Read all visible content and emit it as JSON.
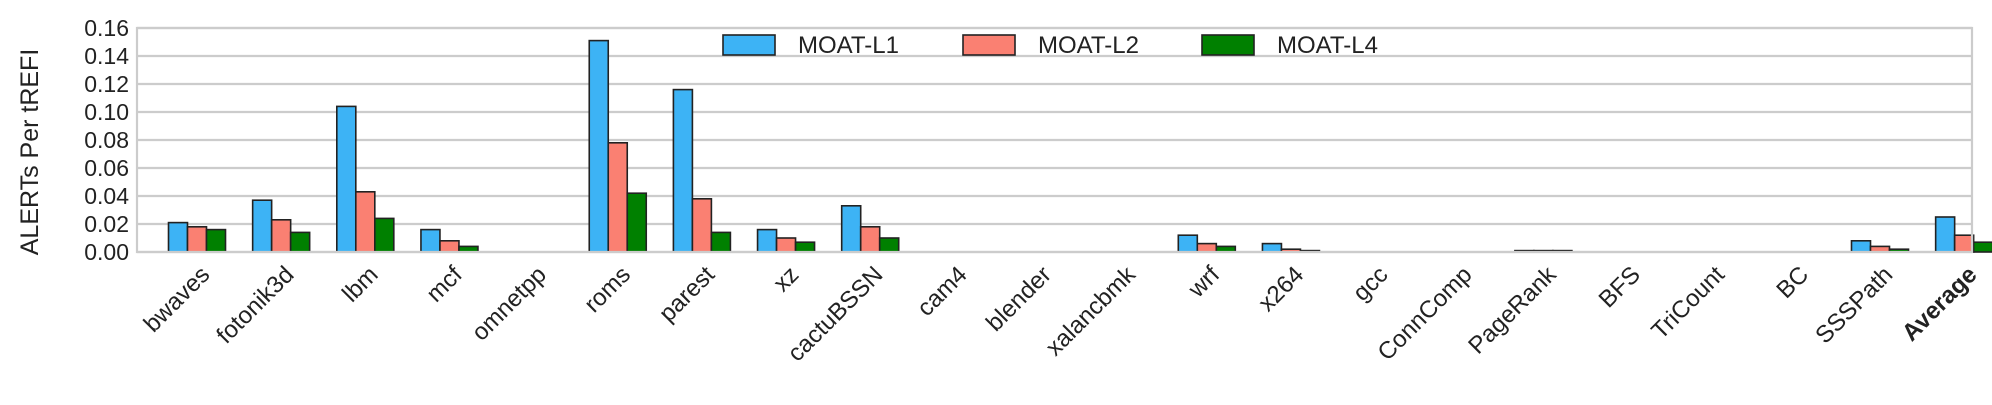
{
  "chart_data": {
    "type": "bar",
    "title": "",
    "xlabel": "",
    "ylabel": "ALERTs Per tREFI",
    "ylim": [
      0,
      0.16
    ],
    "yticks": [
      "0.00",
      "0.02",
      "0.04",
      "0.06",
      "0.08",
      "0.10",
      "0.12",
      "0.14",
      "0.16"
    ],
    "grid": true,
    "legend_position": "top-center",
    "categories": [
      "bwaves",
      "fotonik3d",
      "lbm",
      "mcf",
      "omnetpp",
      "roms",
      "parest",
      "xz",
      "cactuBSSN",
      "cam4",
      "blender",
      "xalancbmk",
      "wrf",
      "x264",
      "gcc",
      "ConnComp",
      "PageRank",
      "BFS",
      "TriCount",
      "BC",
      "SSSPath",
      "Average"
    ],
    "series": [
      {
        "name": "MOAT-L1",
        "color": "#3db3f5",
        "values": [
          0.021,
          0.037,
          0.104,
          0.016,
          0.0,
          0.151,
          0.116,
          0.016,
          0.033,
          0.0,
          0.0,
          0.0,
          0.012,
          0.006,
          0.0,
          0.0,
          0.001,
          0.0,
          0.0,
          0.0,
          0.008,
          0.025
        ]
      },
      {
        "name": "MOAT-L2",
        "color": "#fa8072",
        "values": [
          0.018,
          0.023,
          0.043,
          0.008,
          0.0,
          0.078,
          0.038,
          0.01,
          0.018,
          0.0,
          0.0,
          0.0,
          0.006,
          0.002,
          0.0,
          0.0,
          0.001,
          0.0,
          0.0,
          0.0,
          0.004,
          0.012
        ]
      },
      {
        "name": "MOAT-L4",
        "color": "#008000",
        "values": [
          0.016,
          0.014,
          0.024,
          0.004,
          0.0,
          0.042,
          0.014,
          0.007,
          0.01,
          0.0,
          0.0,
          0.0,
          0.004,
          0.001,
          0.0,
          0.0,
          0.001,
          0.0,
          0.0,
          0.0,
          0.002,
          0.007
        ]
      }
    ],
    "bold_categories": [
      "Average"
    ]
  }
}
